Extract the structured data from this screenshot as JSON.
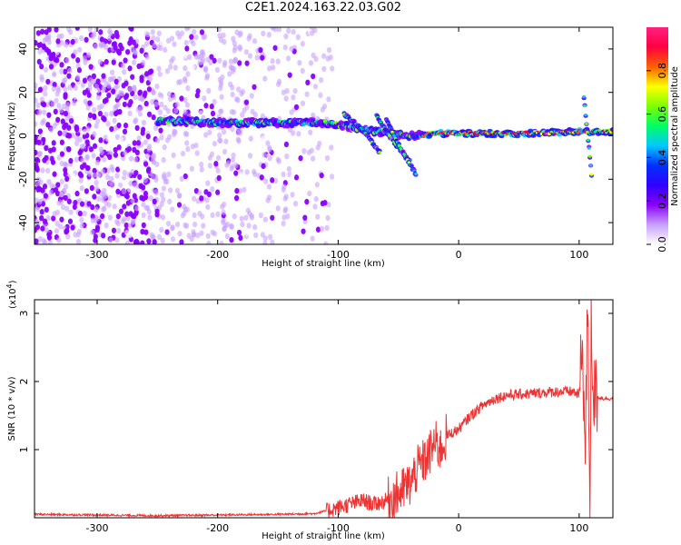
{
  "title": "C2E1.2024.163.22.03.G02",
  "chart_data": [
    {
      "type": "heatmap",
      "xlabel": "Height of straight line (km)",
      "ylabel": "Frequency (Hz)",
      "xlim": [
        -352,
        128
      ],
      "ylim": [
        -50,
        50
      ],
      "x_ticks": [
        -300,
        -200,
        -100,
        0,
        100
      ],
      "y_ticks": [
        -40,
        -20,
        0,
        20,
        40
      ],
      "colorbar": {
        "label": "Normalized spectral amplitude",
        "range": [
          0.0,
          1.0
        ],
        "ticks": [
          "0.0",
          "0.2",
          "0.4",
          "0.6",
          "0.8"
        ],
        "colormap": [
          "#ffffff",
          "#c8a0ff",
          "#8a00ff",
          "#3000ff",
          "#0030ff",
          "#00c8ff",
          "#00ff64",
          "#7cff00",
          "#ffff00",
          "#ff6000",
          "#ff0040",
          "#ff2080"
        ]
      },
      "features": [
        {
          "name": "dominant-line",
          "x": [
            -250,
            -200,
            -150,
            -110,
            -80,
            -55,
            -40,
            -20,
            0,
            50,
            100,
            128
          ],
          "y": [
            7,
            6,
            6,
            6,
            3,
            1,
            0,
            1,
            1,
            1,
            2,
            2
          ]
        },
        {
          "name": "descending-branch-1",
          "x": [
            -95,
            -80,
            -65
          ],
          "y": [
            10,
            3,
            -8
          ]
        },
        {
          "name": "descending-branch-2",
          "x": [
            -68,
            -55,
            -40
          ],
          "y": [
            9,
            -2,
            -12
          ]
        },
        {
          "name": "descending-branch-3",
          "x": [
            -60,
            -48,
            -35
          ],
          "y": [
            7,
            -6,
            -18
          ]
        },
        {
          "name": "spike-at-105",
          "x": [
            104,
            106,
            109,
            111
          ],
          "y": [
            18,
            6,
            -10,
            -22
          ]
        }
      ]
    },
    {
      "type": "line",
      "xlabel": "Height of straight line (km)",
      "ylabel": "SNR (10 * v/v)",
      "y_scale_label": "(x10",
      "y_scale_exp": "4",
      "y_scale_close": ")",
      "xlim": [
        -352,
        128
      ],
      "ylim": [
        0,
        3.2
      ],
      "x_ticks": [
        -300,
        -200,
        -100,
        0,
        100
      ],
      "y_ticks": [
        1,
        2,
        3
      ],
      "color": "#ee3333",
      "series": [
        {
          "x": [
            -352,
            -300,
            -250,
            -200,
            -150,
            -120,
            -110,
            -100,
            -90,
            -80,
            -70,
            -60,
            -50,
            -40,
            -35,
            -30,
            -25,
            -20,
            -15,
            -10,
            -5,
            0,
            10,
            20,
            30,
            40,
            60,
            80,
            95,
            100,
            103,
            105,
            107,
            109,
            110,
            112,
            116,
            120,
            128
          ],
          "y": [
            0.05,
            0.04,
            0.03,
            0.04,
            0.05,
            0.06,
            0.1,
            0.15,
            0.2,
            0.25,
            0.2,
            0.25,
            0.35,
            0.5,
            0.7,
            0.8,
            0.9,
            1.1,
            1.0,
            1.2,
            1.25,
            1.3,
            1.5,
            1.65,
            1.75,
            1.8,
            1.82,
            1.85,
            1.85,
            1.8,
            2.6,
            0.8,
            3.1,
            0.2,
            2.8,
            1.8,
            1.77,
            1.75,
            1.75
          ]
        }
      ]
    }
  ]
}
